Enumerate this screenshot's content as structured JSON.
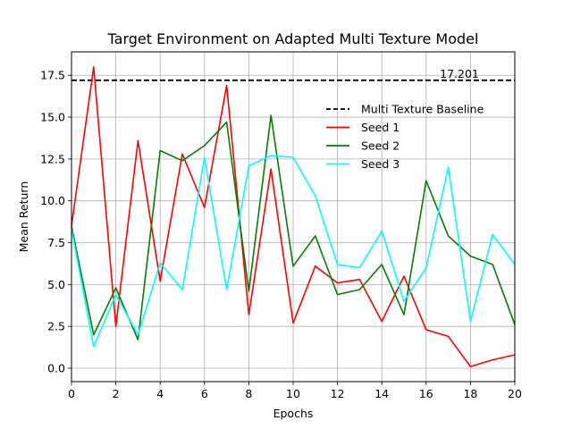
{
  "chart_data": {
    "type": "line",
    "title": "Target Environment on Adapted Multi Texture Model",
    "xlabel": "Epochs",
    "ylabel": "Mean Return",
    "xlim": [
      0,
      20
    ],
    "ylim": [
      -0.8,
      18.9
    ],
    "x_ticks": [
      0,
      2,
      4,
      6,
      8,
      10,
      12,
      14,
      16,
      18,
      20
    ],
    "y_ticks": [
      0.0,
      2.5,
      5.0,
      7.5,
      10.0,
      12.5,
      15.0,
      17.5
    ],
    "x_tick_labels": [
      "0",
      "2",
      "4",
      "6",
      "8",
      "10",
      "12",
      "14",
      "16",
      "18",
      "20"
    ],
    "y_tick_labels": [
      "0.0",
      "2.5",
      "5.0",
      "7.5",
      "10.0",
      "12.5",
      "15.0",
      "17.5"
    ],
    "grid": true,
    "legend_position": "upper-right",
    "x": [
      0,
      1,
      2,
      3,
      4,
      5,
      6,
      7,
      8,
      9,
      10,
      11,
      12,
      13,
      14,
      15,
      16,
      17,
      18,
      19,
      20
    ],
    "baseline": {
      "name": "Multi Texture Baseline",
      "value": 17.201,
      "label": "17.201",
      "color": "#000000",
      "style": "dashed"
    },
    "series": [
      {
        "name": "Seed 1",
        "color": "#ff0000",
        "values": [
          8.5,
          18.0,
          2.5,
          13.6,
          5.2,
          12.8,
          9.6,
          16.9,
          3.2,
          11.9,
          2.7,
          6.1,
          5.1,
          5.3,
          2.8,
          5.5,
          2.3,
          1.9,
          0.1,
          0.5,
          0.8
        ]
      },
      {
        "name": "Seed 2",
        "color": "#008000",
        "values": [
          8.5,
          2.0,
          4.8,
          1.7,
          13.0,
          12.4,
          13.3,
          14.7,
          4.6,
          15.1,
          6.1,
          7.9,
          4.4,
          4.7,
          6.2,
          3.2,
          11.2,
          7.9,
          6.7,
          6.2,
          2.6
        ]
      },
      {
        "name": "Seed 3",
        "color": "#00ffff",
        "values": [
          8.3,
          1.3,
          4.4,
          2.0,
          6.3,
          4.7,
          12.6,
          4.7,
          12.1,
          12.7,
          12.6,
          10.3,
          6.2,
          6.0,
          8.2,
          4.0,
          6.0,
          12.0,
          2.8,
          8.0,
          6.2
        ]
      }
    ]
  }
}
